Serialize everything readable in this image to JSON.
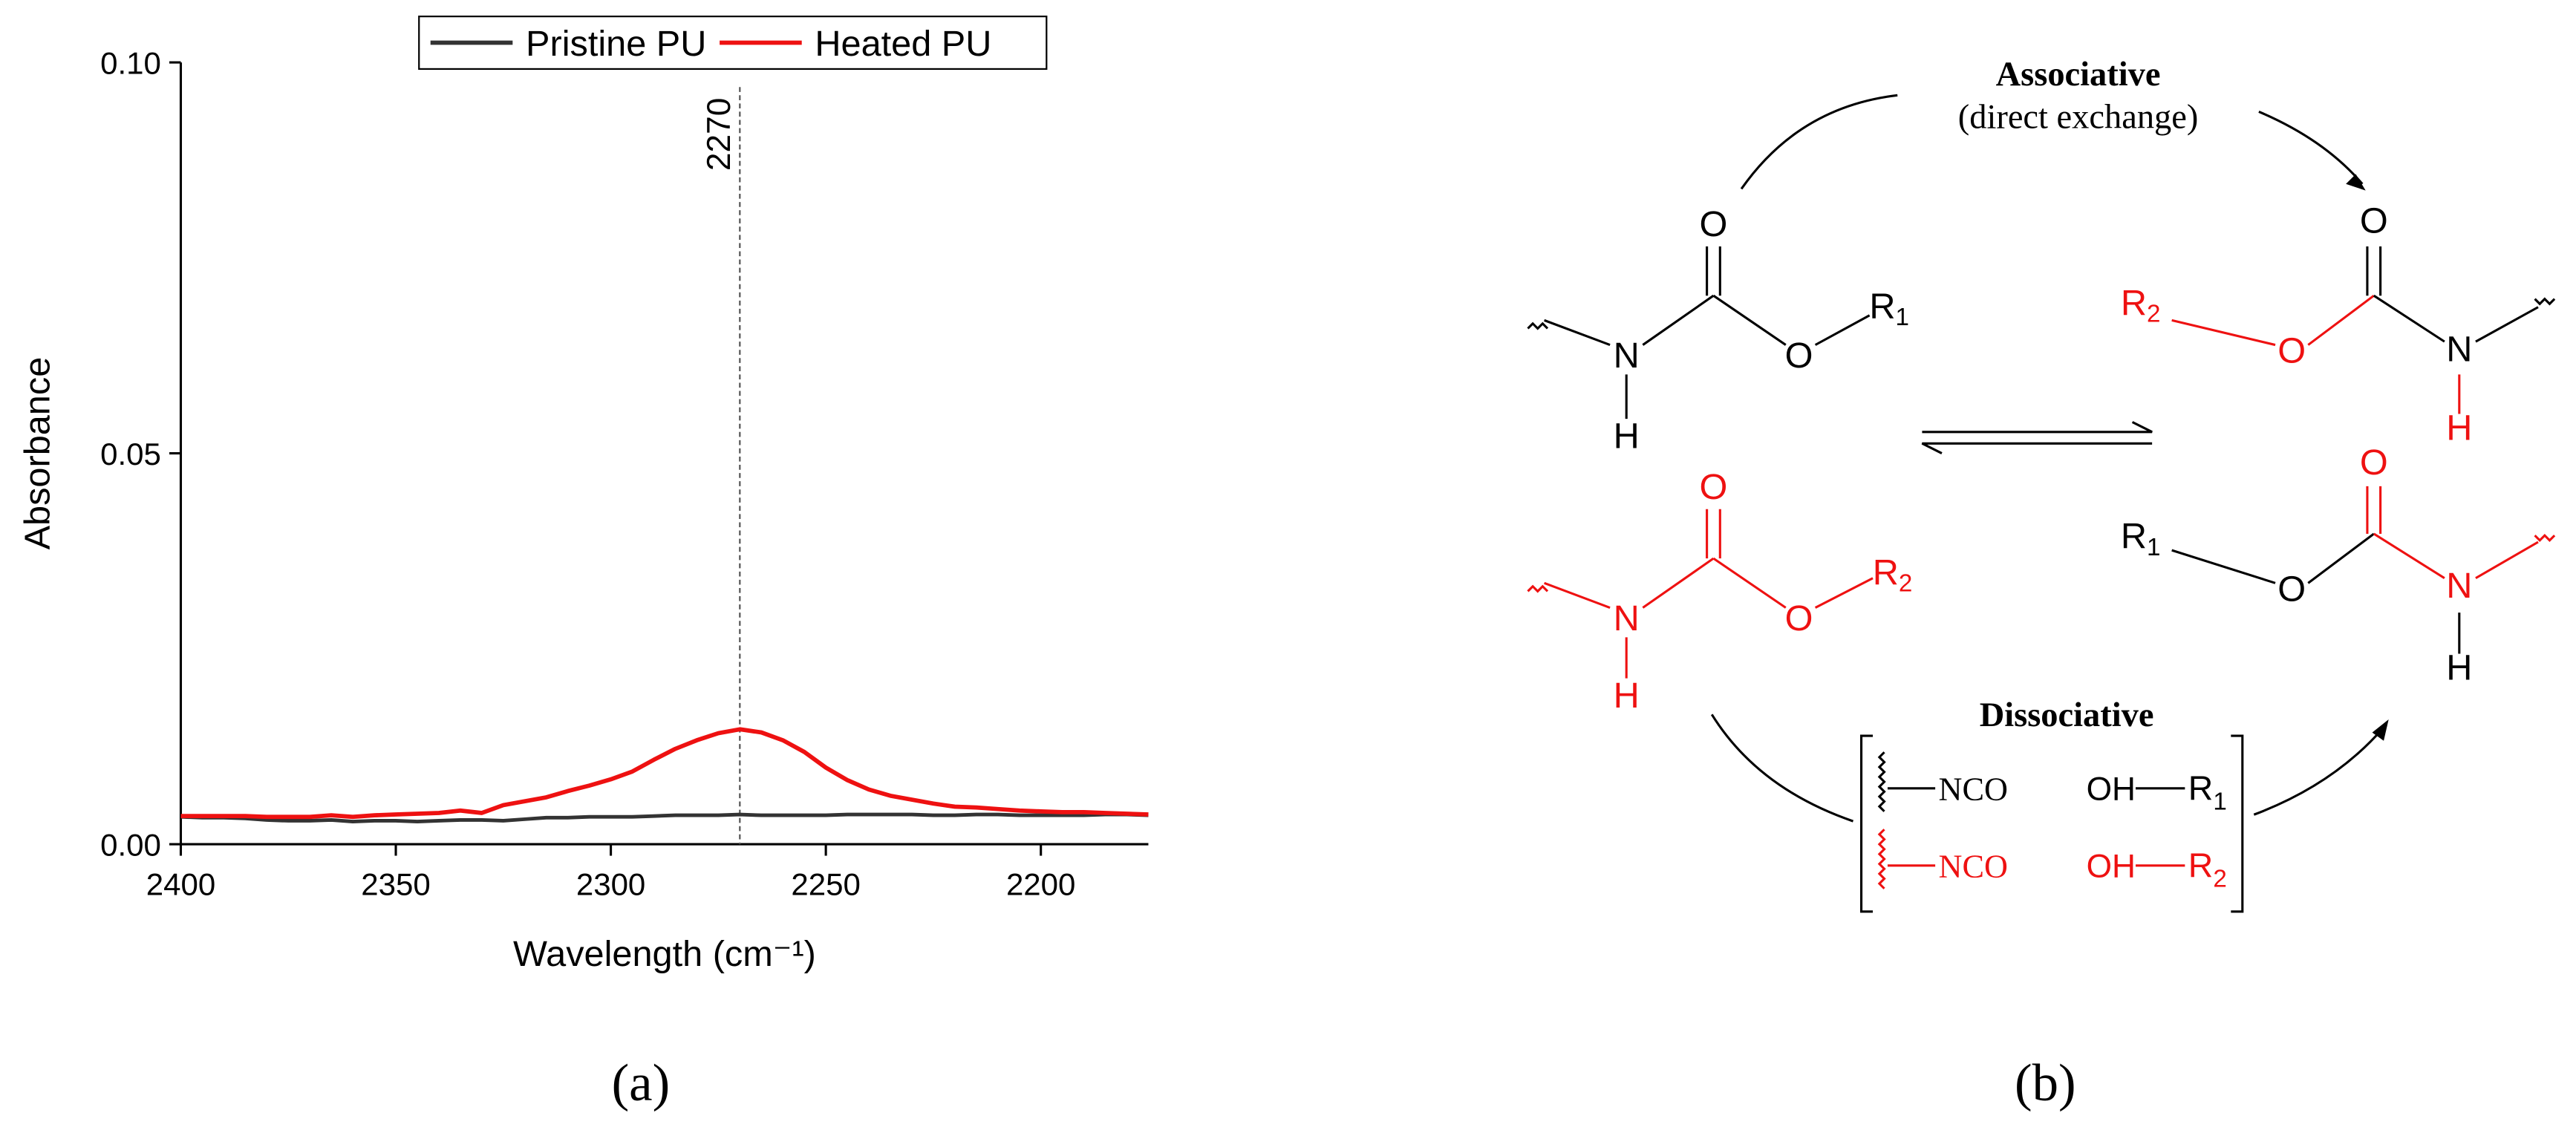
{
  "chart_data": {
    "type": "line",
    "xlabel": "Wavelength (cm⁻¹)",
    "ylabel": "Absorbance",
    "legend": "top",
    "x": [
      2400,
      2395,
      2390,
      2385,
      2380,
      2375,
      2370,
      2365,
      2360,
      2355,
      2350,
      2345,
      2340,
      2335,
      2330,
      2325,
      2320,
      2315,
      2310,
      2305,
      2300,
      2295,
      2290,
      2285,
      2280,
      2275,
      2270,
      2265,
      2260,
      2255,
      2250,
      2245,
      2240,
      2235,
      2230,
      2225,
      2220,
      2215,
      2210,
      2205,
      2200,
      2195,
      2190,
      2185,
      2180,
      2175
    ],
    "series": [
      {
        "name": "Pristine PU",
        "color": "#333333",
        "values": [
          0.0035,
          0.0034,
          0.0034,
          0.0033,
          0.0031,
          0.003,
          0.003,
          0.0031,
          0.0029,
          0.003,
          0.003,
          0.0029,
          0.003,
          0.0031,
          0.0031,
          0.003,
          0.0032,
          0.0034,
          0.0034,
          0.0035,
          0.0035,
          0.0035,
          0.0036,
          0.0037,
          0.0037,
          0.0037,
          0.0038,
          0.0037,
          0.0037,
          0.0037,
          0.0037,
          0.0038,
          0.0038,
          0.0038,
          0.0038,
          0.0037,
          0.0037,
          0.0038,
          0.0038,
          0.0037,
          0.0037,
          0.0037,
          0.0037,
          0.0038,
          0.0038,
          0.0037
        ]
      },
      {
        "name": "Heated PU",
        "color": "#ee1111",
        "values": [
          0.0036,
          0.0036,
          0.0036,
          0.0036,
          0.0035,
          0.0035,
          0.0035,
          0.0037,
          0.0035,
          0.0037,
          0.0038,
          0.0039,
          0.004,
          0.0043,
          0.004,
          0.005,
          0.0055,
          0.006,
          0.0068,
          0.0075,
          0.0083,
          0.0093,
          0.0108,
          0.0122,
          0.0133,
          0.0142,
          0.0147,
          0.0143,
          0.0133,
          0.0118,
          0.0098,
          0.0082,
          0.007,
          0.0062,
          0.0057,
          0.0052,
          0.0048,
          0.0047,
          0.0045,
          0.0043,
          0.0042,
          0.0041,
          0.0041,
          0.004,
          0.0039,
          0.0038
        ]
      }
    ],
    "xlim": [
      2400,
      2175
    ],
    "xticks": [
      2400,
      2350,
      2300,
      2250,
      2200
    ],
    "ylim": [
      0,
      0.1
    ],
    "yticks": [
      {
        "value": 0,
        "label": "0.00"
      },
      {
        "value": 0.05,
        "label": "0.05"
      },
      {
        "value": 0.1,
        "label": "0.10"
      }
    ],
    "annotations": [
      {
        "text": "2270",
        "x": 2270
      }
    ]
  },
  "panels": [
    "(a)",
    "(b)"
  ],
  "diagram": {
    "associative": {
      "title": "Associative",
      "note": "(direct exchange)"
    },
    "dissociative": {
      "title": "Dissociative",
      "fragments": [
        "NCO",
        "OH",
        "R",
        "1",
        "NCO",
        "OH",
        "R",
        "2"
      ]
    },
    "molecules": [
      {
        "labels": [
          "O",
          "N",
          "H",
          "O",
          "R",
          "1"
        ]
      },
      {
        "labels": [
          "R",
          "2",
          "O",
          "O",
          "N",
          "H"
        ]
      },
      {
        "labels": [
          "O",
          "N",
          "H",
          "O",
          "R",
          "2"
        ]
      },
      {
        "labels": [
          "R",
          "1",
          "O",
          "O",
          "N",
          "H"
        ]
      }
    ]
  }
}
